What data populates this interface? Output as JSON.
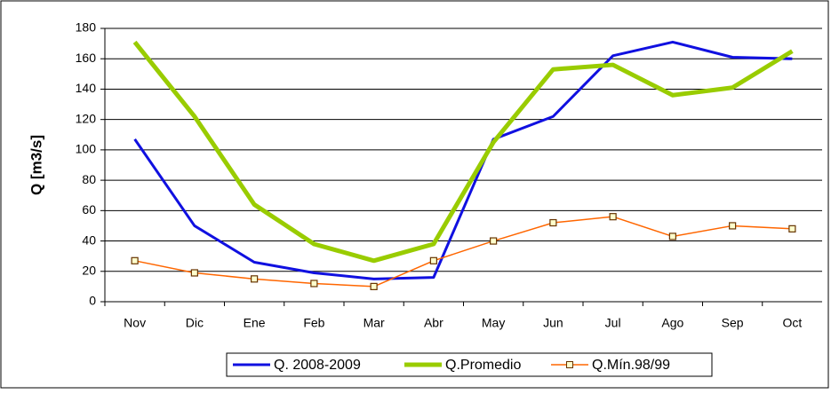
{
  "chart_data": {
    "type": "line",
    "y_label": "Q [m3/s]",
    "categories": [
      "Nov",
      "Dic",
      "Ene",
      "Feb",
      "Mar",
      "Abr",
      "May",
      "Jun",
      "Jul",
      "Ago",
      "Sep",
      "Oct"
    ],
    "series": [
      {
        "name": "Q. 2008-2009",
        "color": "#1010e0",
        "values": [
          107,
          50,
          26,
          19,
          15,
          16,
          107,
          122,
          162,
          171,
          161,
          160
        ]
      },
      {
        "name": "Q.Promedio",
        "color": "#99cc00",
        "values": [
          171,
          122,
          64,
          38,
          27,
          38,
          105,
          153,
          156,
          136,
          141,
          165
        ]
      },
      {
        "name": "Q.Mín.98/99",
        "color": "#ff6600",
        "values": [
          27,
          19,
          15,
          12,
          10,
          27,
          40,
          52,
          56,
          43,
          50,
          48
        ]
      }
    ],
    "ylim": [
      0,
      180
    ],
    "yticks": [
      0,
      20,
      40,
      60,
      80,
      100,
      120,
      140,
      160,
      180
    ],
    "grid": true,
    "legend_position": "bottom"
  }
}
